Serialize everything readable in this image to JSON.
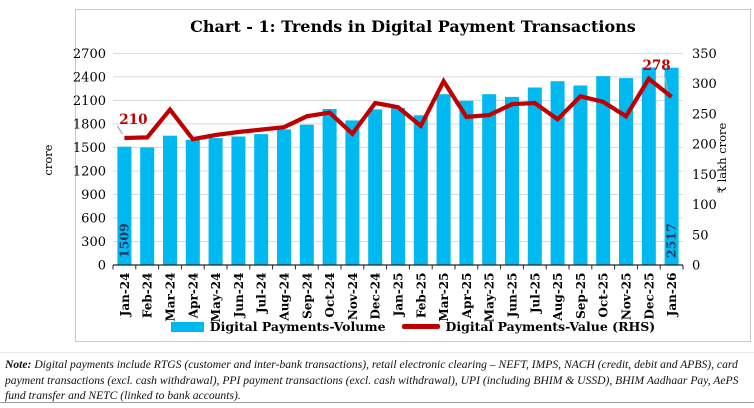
{
  "title": "Chart - 1: Trends in Digital Payment Transactions",
  "legend": [
    {
      "label": "Digital Payments-Volume"
    },
    {
      "label": "Digital Payments-Value (RHS)"
    }
  ],
  "note": {
    "label": "Note:",
    "text": "Digital payments include RTGS (customer and inter-bank transactions), retail electronic clearing – NEFT, IMPS, NACH (credit, debit and APBS), card payment transactions (excl. cash withdrawal), PPI payment transactions (excl. cash withdrawal), UPI (including BHIM & USSD), BHIM Aadhaar Pay, AePS fund transfer and NETC (linked to bank accounts)."
  },
  "colors": {
    "bar": "#00B9F0",
    "line": "#C00000",
    "bar_label": "#1F3864",
    "point_label": "#C00000",
    "grid": "#D9D9D9",
    "axis": "#262626",
    "leader": "#A6A6A6"
  },
  "chart_data": {
    "type": "bar",
    "subtype": "bar+line dual-axis",
    "title": "Chart - 1: Trends in Digital Payment Transactions",
    "categories": [
      "Jan-24",
      "Feb-24",
      "Mar-24",
      "Apr-24",
      "May-24",
      "Jun-24",
      "Jul-24",
      "Aug-24",
      "Sep-24",
      "Oct-24",
      "Nov-24",
      "Dec-24",
      "Jan-25",
      "Feb-25",
      "Mar-25",
      "Apr-25",
      "May-25",
      "Jun-25",
      "Jul-25",
      "Aug-25",
      "Sep-25",
      "Oct-25",
      "Nov-25",
      "Dec-25",
      "Jan-26"
    ],
    "series": [
      {
        "name": "Digital Payments-Volume",
        "type": "bar",
        "axis": "left",
        "values": [
          1509,
          1500,
          1650,
          1595,
          1620,
          1640,
          1670,
          1730,
          1790,
          1990,
          1845,
          1985,
          2005,
          1910,
          2180,
          2095,
          2180,
          2145,
          2265,
          2345,
          2290,
          2410,
          2385,
          2520,
          2517
        ]
      },
      {
        "name": "Digital Payments-Value (RHS)",
        "type": "line",
        "axis": "right",
        "values": [
          210,
          211,
          257,
          208,
          215,
          220,
          224,
          228,
          246,
          252,
          217,
          268,
          261,
          230,
          304,
          245,
          248,
          266,
          268,
          241,
          279,
          270,
          246,
          308,
          278
        ]
      }
    ],
    "ylabel": "crore",
    "y2label": "₹ lakh crore",
    "ylim": [
      0,
      2700
    ],
    "y2lim": [
      0,
      350
    ],
    "yticks": [
      0,
      300,
      600,
      900,
      1200,
      1500,
      1800,
      2100,
      2400,
      2700
    ],
    "y2ticks": [
      0,
      50,
      100,
      150,
      200,
      250,
      300,
      350
    ],
    "grid": "horizontal",
    "legend_position": "bottom",
    "annotations": [
      {
        "series": 0,
        "index": 0,
        "text": "1509",
        "placement": "in-bar"
      },
      {
        "series": 0,
        "index": 24,
        "text": "2517",
        "placement": "in-bar"
      },
      {
        "series": 1,
        "index": 0,
        "text": "210",
        "placement": "first-point"
      },
      {
        "series": 1,
        "index": 24,
        "text": "278",
        "placement": "last-point"
      }
    ]
  }
}
